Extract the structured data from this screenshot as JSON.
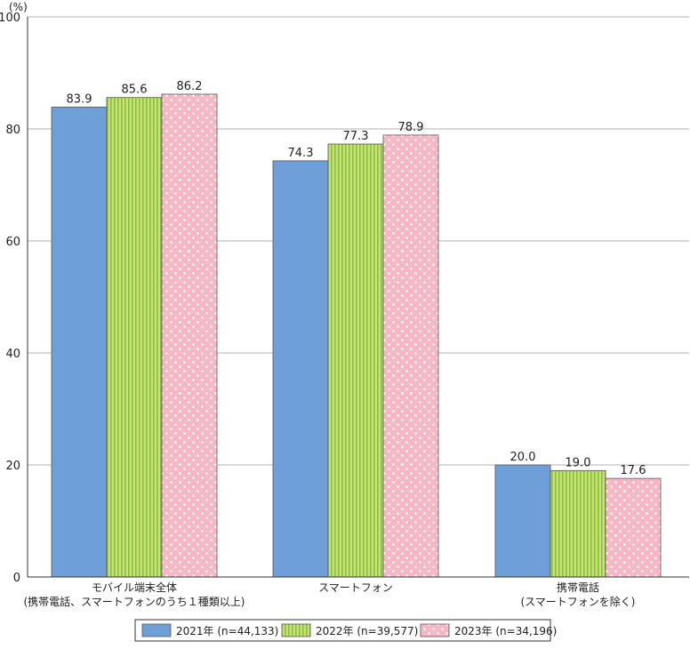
{
  "chart_data": {
    "type": "bar",
    "unit_label": "(%)",
    "ylim": [
      0,
      100
    ],
    "yticks": [
      0,
      20,
      40,
      60,
      80,
      100
    ],
    "grid": true,
    "legend_position": "bottom",
    "categories": [
      [
        "モバイル端末全体",
        "(携帯電話、スマートフォンのうち１種類以上)"
      ],
      [
        "スマートフォン"
      ],
      [
        "携帯電話",
        "(スマートフォンを除く)"
      ]
    ],
    "series": [
      {
        "name": "2021年 (n=44,133)",
        "values": [
          83.9,
          74.3,
          20.0
        ],
        "labels": [
          "83.9",
          "74.3",
          "20.0"
        ],
        "color": "#6f9fd8",
        "pattern": "solid"
      },
      {
        "name": "2022年 (n=39,577)",
        "values": [
          85.6,
          77.3,
          19.0
        ],
        "labels": [
          "85.6",
          "77.3",
          "19.0"
        ],
        "color": "#b5d86a",
        "pattern": "vertical-stripes"
      },
      {
        "name": "2023年 (n=34,196)",
        "values": [
          86.2,
          78.9,
          17.6
        ],
        "labels": [
          "86.2",
          "78.9",
          "17.6"
        ],
        "color": "#f6b8c4",
        "pattern": "dots"
      }
    ]
  }
}
